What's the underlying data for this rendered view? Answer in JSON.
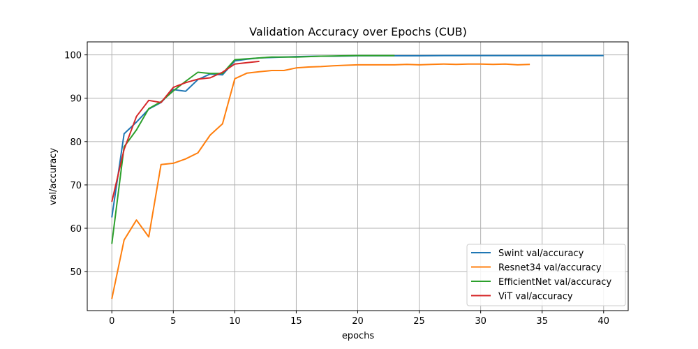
{
  "chart_data": {
    "type": "line",
    "title": "Validation Accuracy over Epochs (CUB)",
    "xlabel": "epochs",
    "ylabel": "val/accuracy",
    "xlim": [
      -2,
      42
    ],
    "ylim": [
      41,
      103
    ],
    "xticks": [
      0,
      5,
      10,
      15,
      20,
      25,
      30,
      35,
      40
    ],
    "yticks": [
      50,
      60,
      70,
      80,
      90,
      100
    ],
    "grid": true,
    "legend_position": "lower-right",
    "series": [
      {
        "name": "Swint val/accuracy",
        "color": "#1f77b4",
        "x": [
          0,
          1,
          2,
          3,
          4,
          5,
          6,
          7,
          8,
          9,
          10,
          11,
          12,
          13,
          14,
          15,
          16,
          17,
          18,
          19,
          20,
          21,
          22,
          23,
          24,
          25,
          26,
          27,
          28,
          29,
          30,
          31,
          32,
          33,
          34,
          35,
          36,
          37,
          38,
          39,
          40
        ],
        "values": [
          62.5,
          81.8,
          84.5,
          87.5,
          89.0,
          92.0,
          91.6,
          94.3,
          95.6,
          95.4,
          98.6,
          99.0,
          99.3,
          99.4,
          99.5,
          99.6,
          99.65,
          99.7,
          99.7,
          99.75,
          99.8,
          99.8,
          99.8,
          99.8,
          99.8,
          99.8,
          99.82,
          99.85,
          99.85,
          99.85,
          99.85,
          99.85,
          99.85,
          99.85,
          99.85,
          99.85,
          99.85,
          99.85,
          99.85,
          99.85,
          99.85
        ]
      },
      {
        "name": "Resnet34 val/accuracy",
        "color": "#ff7f0e",
        "x": [
          0,
          1,
          2,
          3,
          4,
          5,
          6,
          7,
          8,
          9,
          10,
          11,
          12,
          13,
          14,
          15,
          16,
          17,
          18,
          19,
          20,
          21,
          22,
          23,
          24,
          25,
          26,
          27,
          28,
          29,
          30,
          31,
          32,
          33,
          34
        ],
        "values": [
          43.7,
          57.3,
          61.9,
          58.0,
          74.7,
          75.0,
          76.0,
          77.4,
          81.5,
          84.1,
          94.5,
          95.8,
          96.1,
          96.4,
          96.4,
          97.0,
          97.2,
          97.3,
          97.5,
          97.6,
          97.7,
          97.7,
          97.7,
          97.7,
          97.8,
          97.7,
          97.8,
          97.9,
          97.8,
          97.9,
          97.9,
          97.8,
          97.9,
          97.7,
          97.8
        ]
      },
      {
        "name": "EfficientNet val/accuracy",
        "color": "#2ca02c",
        "x": [
          0,
          1,
          2,
          3,
          4,
          5,
          6,
          7,
          8,
          9,
          10,
          11,
          12,
          13,
          14,
          15,
          16,
          17,
          18,
          19,
          20,
          21,
          22,
          23
        ],
        "values": [
          56.4,
          78.8,
          82.7,
          87.6,
          89.2,
          91.7,
          93.9,
          96.0,
          95.7,
          95.7,
          98.9,
          99.1,
          99.3,
          99.5,
          99.5,
          99.5,
          99.6,
          99.7,
          99.75,
          99.8,
          99.85,
          99.85,
          99.85,
          99.85
        ]
      },
      {
        "name": "ViT val/accuracy",
        "color": "#d62728",
        "x": [
          0,
          1,
          2,
          3,
          4,
          5,
          6,
          7,
          8,
          9,
          10,
          11,
          12
        ],
        "values": [
          66.1,
          78.2,
          85.8,
          89.5,
          89.0,
          92.5,
          93.6,
          94.4,
          94.7,
          96.0,
          97.9,
          98.2,
          98.5
        ]
      }
    ]
  }
}
